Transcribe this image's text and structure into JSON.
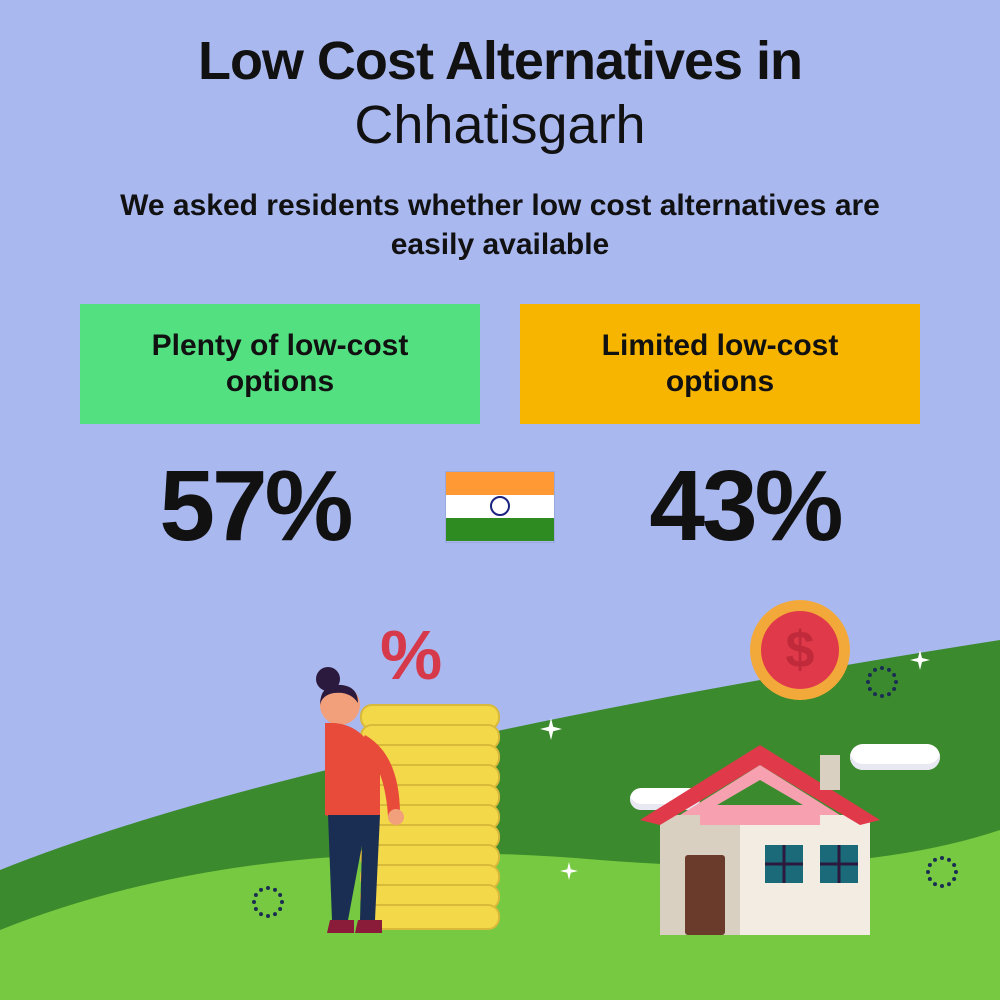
{
  "background_color": "#aab8f0",
  "title": {
    "line1": "Low Cost Alternatives in",
    "line2": "Chhatisgarh",
    "line1_weight": 900,
    "line2_weight": 400,
    "fontsize": 54,
    "color": "#111111"
  },
  "subtitle": {
    "text": "We asked residents whether low cost alternatives are easily available",
    "fontsize": 30,
    "weight": 700,
    "color": "#111111"
  },
  "options": {
    "left": {
      "label": "Plenty of low-cost options",
      "bg": "#52e081",
      "value": "57%"
    },
    "right": {
      "label": "Limited low-cost options",
      "bg": "#f7b500",
      "value": "43%"
    },
    "box_fontsize": 30,
    "value_fontsize": 100,
    "value_color": "#111111"
  },
  "flag": {
    "top": "#ff9933",
    "mid": "#ffffff",
    "bot": "#2e8b21",
    "chakra": "#1a237e"
  },
  "illustration": {
    "hill_dark": "#3b8a2e",
    "hill_light": "#76c940",
    "coin_fill": "#f3d84a",
    "coin_edge": "#d9b93a",
    "percent_color": "#d63a4a",
    "person_top": "#e84b3a",
    "person_skin": "#f2a07b",
    "person_hair": "#2b1a3d",
    "person_pants": "#1a2d52",
    "person_shoes": "#8a1c3a",
    "house_wall": "#f3ece2",
    "house_wall_shadow": "#d9d0c2",
    "house_roof": "#e03a4a",
    "house_roof_top": "#f7a0b0",
    "house_door": "#6a3a2a",
    "house_window": "#1a6a7a",
    "house_window_frame": "#2b1a3d",
    "dollar_outer": "#f3a93a",
    "dollar_inner": "#e03a4a",
    "dollar_text": "#c02a3a",
    "cloud": "#ffffff",
    "cloud_shadow": "#e8e8f2",
    "sparkle": "#ffffff",
    "dotring": "#1a2d52"
  }
}
